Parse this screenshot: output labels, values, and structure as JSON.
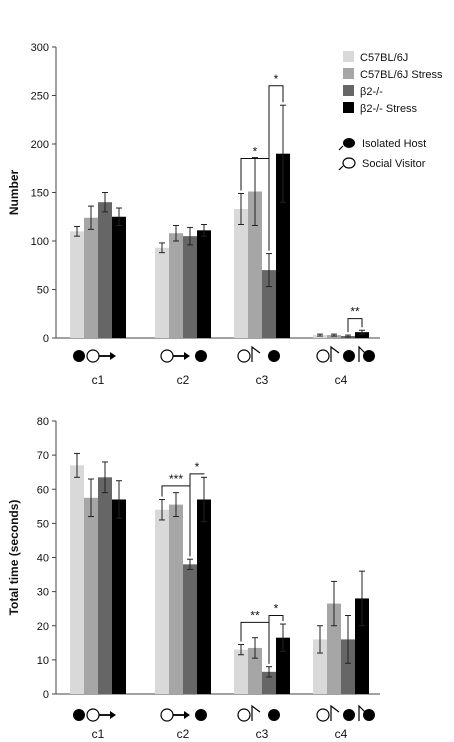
{
  "legend": {
    "series_labels": [
      "C57BL/6J",
      "C57BL/6J Stress",
      "β2-/-",
      "β2-/- Stress"
    ],
    "icon_entries": [
      {
        "icon": "filled-mouse-icon",
        "label": "Isolated Host"
      },
      {
        "icon": "open-mouse-icon",
        "label": "Social Visitor"
      }
    ]
  },
  "colors": {
    "series": [
      "#d9d9d9",
      "#a6a6a6",
      "#666666",
      "#000000"
    ]
  },
  "chart_data": [
    {
      "type": "bar",
      "ylabel": "Number",
      "ylim": [
        0,
        300
      ],
      "yticks": [
        0,
        50,
        100,
        150,
        200,
        250,
        300
      ],
      "categories": [
        "c1",
        "c2",
        "c3",
        "c4"
      ],
      "series": [
        {
          "name": "C57BL/6J",
          "values": [
            110,
            93,
            133,
            3
          ],
          "errors": [
            5,
            5,
            16,
            1
          ]
        },
        {
          "name": "C57BL/6J Stress",
          "values": [
            124,
            108,
            151,
            3
          ],
          "errors": [
            12,
            8,
            35,
            1
          ]
        },
        {
          "name": "β2-/-",
          "values": [
            140,
            105,
            70,
            2
          ],
          "errors": [
            10,
            9,
            17,
            1
          ]
        },
        {
          "name": "β2-/- Stress",
          "values": [
            125,
            111,
            190,
            6
          ],
          "errors": [
            9,
            6,
            50,
            2
          ]
        }
      ],
      "significance": [
        {
          "category": "c3",
          "from": 0,
          "to": 2,
          "label": "*",
          "y": 185
        },
        {
          "category": "c3",
          "from": 2,
          "to": 3,
          "label": "*",
          "y": 260
        },
        {
          "category": "c4",
          "from": 2,
          "to": 3,
          "label": "**",
          "y": 20
        }
      ],
      "icons": [
        [
          "host",
          "visitor-arrow"
        ],
        [
          "visitor-arrow",
          "host"
        ],
        [
          "visitor-up",
          "host"
        ],
        [
          "visitor-up",
          "host-up"
        ]
      ]
    },
    {
      "type": "bar",
      "ylabel": "Total time  (seconds)",
      "ylim": [
        0,
        80
      ],
      "yticks": [
        0,
        10,
        20,
        30,
        40,
        50,
        60,
        70,
        80
      ],
      "categories": [
        "c1",
        "c2",
        "c3",
        "c4"
      ],
      "series": [
        {
          "name": "C57BL/6J",
          "values": [
            67,
            54,
            13,
            16
          ],
          "errors": [
            3.5,
            3,
            1.5,
            4
          ]
        },
        {
          "name": "C57BL/6J Stress",
          "values": [
            57.5,
            55.5,
            13.5,
            26.5
          ],
          "errors": [
            5.5,
            3.5,
            3,
            6.5
          ]
        },
        {
          "name": "β2-/-",
          "values": [
            63.5,
            38,
            6.5,
            16
          ],
          "errors": [
            4.5,
            1.5,
            1.5,
            7
          ]
        },
        {
          "name": "β2-/- Stress",
          "values": [
            57,
            57,
            16.5,
            28
          ],
          "errors": [
            5.5,
            6.5,
            4,
            8
          ]
        }
      ],
      "significance": [
        {
          "category": "c2",
          "from": 0,
          "to": 2,
          "label": "***",
          "y": 61
        },
        {
          "category": "c2",
          "from": 2,
          "to": 3,
          "label": "*",
          "y": 64.5
        },
        {
          "category": "c3",
          "from": 0,
          "to": 2,
          "label": "**",
          "y": 21
        },
        {
          "category": "c3",
          "from": 2,
          "to": 3,
          "label": "*",
          "y": 23
        }
      ],
      "icons": [
        [
          "host",
          "visitor-arrow"
        ],
        [
          "visitor-arrow",
          "host"
        ],
        [
          "visitor-up",
          "host"
        ],
        [
          "visitor-up",
          "host-up"
        ]
      ]
    }
  ]
}
